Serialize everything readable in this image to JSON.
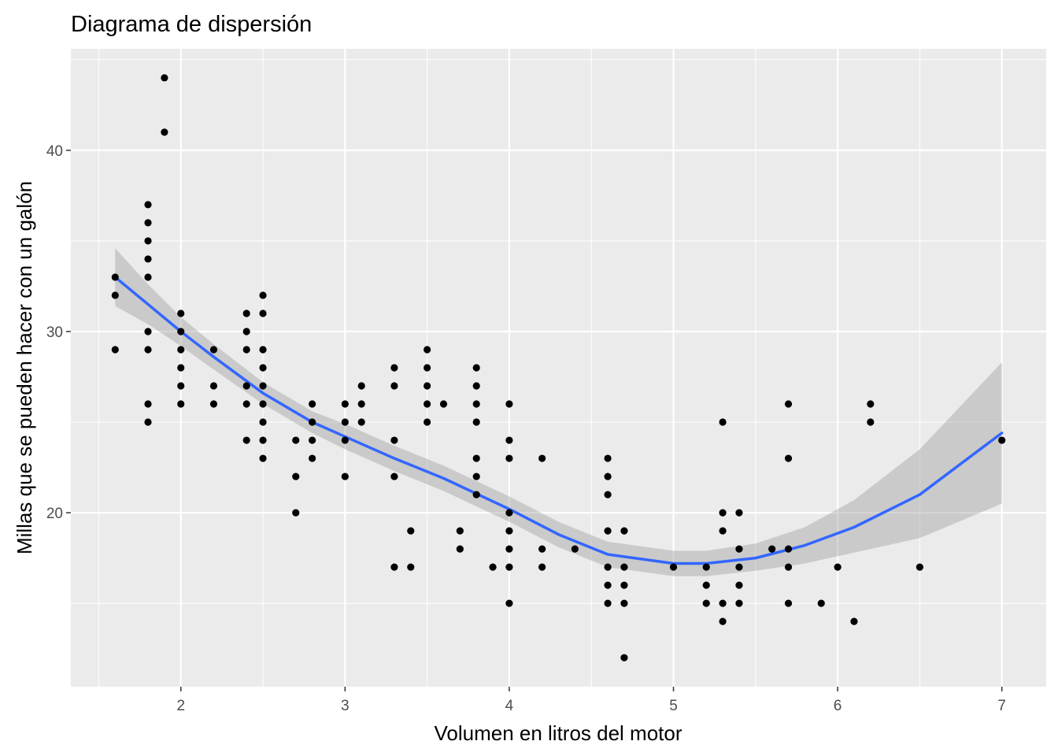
{
  "chart_data": {
    "type": "scatter",
    "title": "Diagrama de dispersión",
    "xlabel": "Volumen en litros del motor",
    "ylabel": "Millas que se pueden hacer con un galón",
    "xlim": [
      1.33,
      7.27
    ],
    "ylim": [
      10.4,
      45.6
    ],
    "x_major_ticks": [
      2,
      3,
      4,
      5,
      6,
      7
    ],
    "x_minor_ticks": [
      1.5,
      2.5,
      3.5,
      4.5,
      5.5,
      6.5
    ],
    "y_major_ticks": [
      20,
      30,
      40
    ],
    "y_minor_ticks": [
      15,
      25,
      35,
      45
    ],
    "x_tick_labels": [
      "2",
      "3",
      "4",
      "5",
      "6",
      "7"
    ],
    "y_tick_labels": [
      "20",
      "30",
      "40"
    ],
    "grid": true,
    "colors": {
      "panel": "#ebebeb",
      "grid": "#ffffff",
      "points": "#000000",
      "smooth_line": "#3366ff",
      "confidence_band": "#999999"
    },
    "points": [
      [
        1.6,
        33
      ],
      [
        1.6,
        32
      ],
      [
        1.6,
        29
      ],
      [
        1.8,
        37
      ],
      [
        1.8,
        36
      ],
      [
        1.8,
        35
      ],
      [
        1.8,
        34
      ],
      [
        1.8,
        33
      ],
      [
        1.8,
        30
      ],
      [
        1.8,
        29
      ],
      [
        1.8,
        26
      ],
      [
        1.8,
        25
      ],
      [
        1.9,
        44
      ],
      [
        1.9,
        41
      ],
      [
        2.0,
        31
      ],
      [
        2.0,
        30
      ],
      [
        2.0,
        29
      ],
      [
        2.0,
        28
      ],
      [
        2.0,
        27
      ],
      [
        2.0,
        26
      ],
      [
        2.2,
        29
      ],
      [
        2.2,
        27
      ],
      [
        2.2,
        26
      ],
      [
        2.4,
        31
      ],
      [
        2.4,
        30
      ],
      [
        2.4,
        29
      ],
      [
        2.4,
        27
      ],
      [
        2.4,
        26
      ],
      [
        2.4,
        24
      ],
      [
        2.5,
        32
      ],
      [
        2.5,
        31
      ],
      [
        2.5,
        29
      ],
      [
        2.5,
        28
      ],
      [
        2.5,
        27
      ],
      [
        2.5,
        26
      ],
      [
        2.5,
        25
      ],
      [
        2.5,
        24
      ],
      [
        2.5,
        23
      ],
      [
        2.7,
        24
      ],
      [
        2.7,
        22
      ],
      [
        2.7,
        20
      ],
      [
        2.8,
        26
      ],
      [
        2.8,
        25
      ],
      [
        2.8,
        24
      ],
      [
        2.8,
        23
      ],
      [
        3.0,
        26
      ],
      [
        3.0,
        25
      ],
      [
        3.0,
        24
      ],
      [
        3.0,
        22
      ],
      [
        3.1,
        27
      ],
      [
        3.1,
        26
      ],
      [
        3.1,
        25
      ],
      [
        3.3,
        28
      ],
      [
        3.3,
        27
      ],
      [
        3.3,
        24
      ],
      [
        3.3,
        22
      ],
      [
        3.3,
        17
      ],
      [
        3.4,
        19
      ],
      [
        3.4,
        17
      ],
      [
        3.5,
        29
      ],
      [
        3.5,
        28
      ],
      [
        3.5,
        27
      ],
      [
        3.5,
        26
      ],
      [
        3.5,
        25
      ],
      [
        3.6,
        26
      ],
      [
        3.7,
        19
      ],
      [
        3.7,
        18
      ],
      [
        3.8,
        28
      ],
      [
        3.8,
        27
      ],
      [
        3.8,
        26
      ],
      [
        3.8,
        25
      ],
      [
        3.8,
        23
      ],
      [
        3.8,
        22
      ],
      [
        3.8,
        21
      ],
      [
        3.9,
        17
      ],
      [
        4.0,
        26
      ],
      [
        4.0,
        24
      ],
      [
        4.0,
        23
      ],
      [
        4.0,
        20
      ],
      [
        4.0,
        19
      ],
      [
        4.0,
        18
      ],
      [
        4.0,
        17
      ],
      [
        4.0,
        15
      ],
      [
        4.2,
        23
      ],
      [
        4.2,
        18
      ],
      [
        4.2,
        17
      ],
      [
        4.4,
        18
      ],
      [
        4.6,
        23
      ],
      [
        4.6,
        22
      ],
      [
        4.6,
        21
      ],
      [
        4.6,
        19
      ],
      [
        4.6,
        17
      ],
      [
        4.6,
        16
      ],
      [
        4.6,
        15
      ],
      [
        4.7,
        19
      ],
      [
        4.7,
        17
      ],
      [
        4.7,
        16
      ],
      [
        4.7,
        15
      ],
      [
        4.7,
        12
      ],
      [
        5.0,
        17
      ],
      [
        5.2,
        17
      ],
      [
        5.2,
        16
      ],
      [
        5.2,
        15
      ],
      [
        5.3,
        25
      ],
      [
        5.3,
        20
      ],
      [
        5.3,
        19
      ],
      [
        5.3,
        15
      ],
      [
        5.3,
        14
      ],
      [
        5.4,
        20
      ],
      [
        5.4,
        18
      ],
      [
        5.4,
        17
      ],
      [
        5.4,
        16
      ],
      [
        5.4,
        15
      ],
      [
        5.6,
        18
      ],
      [
        5.7,
        26
      ],
      [
        5.7,
        23
      ],
      [
        5.7,
        18
      ],
      [
        5.7,
        17
      ],
      [
        5.7,
        15
      ],
      [
        5.9,
        15
      ],
      [
        6.0,
        17
      ],
      [
        6.1,
        14
      ],
      [
        6.2,
        26
      ],
      [
        6.2,
        25
      ],
      [
        6.5,
        17
      ],
      [
        7.0,
        24
      ]
    ],
    "smooth": {
      "x": [
        1.6,
        1.8,
        2.0,
        2.2,
        2.5,
        2.8,
        3.0,
        3.3,
        3.6,
        4.0,
        4.3,
        4.6,
        5.0,
        5.2,
        5.5,
        5.8,
        6.1,
        6.5,
        7.0
      ],
      "y": [
        33.0,
        31.5,
        30.0,
        28.6,
        26.6,
        25.0,
        24.2,
        23.0,
        21.9,
        20.2,
        18.8,
        17.7,
        17.2,
        17.2,
        17.5,
        18.2,
        19.2,
        21.0,
        24.4
      ],
      "ymin": [
        31.4,
        30.4,
        29.2,
        27.9,
        26.0,
        24.4,
        23.5,
        22.3,
        21.2,
        19.5,
        18.1,
        17.0,
        16.5,
        16.5,
        16.8,
        17.2,
        17.8,
        18.6,
        20.5
      ],
      "ymax": [
        34.6,
        32.6,
        30.8,
        29.3,
        27.2,
        25.6,
        24.9,
        23.7,
        22.6,
        20.9,
        19.5,
        18.4,
        17.9,
        17.9,
        18.3,
        19.2,
        20.7,
        23.5,
        28.3
      ]
    }
  }
}
